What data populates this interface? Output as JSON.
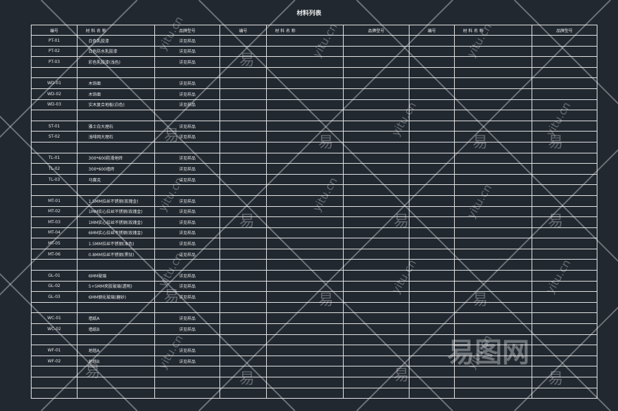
{
  "title": "材料列表",
  "headers": [
    "编号",
    "材 料 名 称",
    "品牌型号"
  ],
  "rows": [
    [
      "PT-01",
      "白色乳胶漆",
      "详见样品"
    ],
    [
      "PT-02",
      "白色防水乳胶漆",
      "详见样品"
    ],
    [
      "PT-03",
      "彩色乳胶漆(浅色)",
      "详见样品"
    ],
    [
      "",
      "",
      ""
    ],
    [
      "WD-01",
      "木饰面",
      "详见样品"
    ],
    [
      "WD-02",
      "木饰面",
      "详见样品"
    ],
    [
      "WD-03",
      "实木复合地板(白色)",
      "详见样品"
    ],
    [
      "",
      "",
      ""
    ],
    [
      "ST-01",
      "雅士白大理石",
      "详见样品"
    ],
    [
      "ST-02",
      "浅啡网大理石",
      "详见样品"
    ],
    [
      "",
      "",
      ""
    ],
    [
      "TL-01",
      "300*600防滑地砖",
      "详见样品"
    ],
    [
      "TL-02",
      "300*600墙砖",
      "详见样品"
    ],
    [
      "TL-03",
      "马赛克",
      "详见样品"
    ],
    [
      "",
      "",
      ""
    ],
    [
      "MT-01",
      "1.5MM拉丝不锈钢(玫瑰金)",
      "详见样品"
    ],
    [
      "MT-02",
      "1MM实心拉丝不锈钢(玫瑰金)",
      "详见样品"
    ],
    [
      "MT-03",
      "1MM实心拉丝不锈钢(玫瑰金)",
      "详见样品"
    ],
    [
      "MT-04",
      "6MM实心拉丝不锈钢(玫瑰金)",
      "详见样品"
    ],
    [
      "MT-05",
      "1.5MM拉丝不锈钢(本色)",
      "详见样品"
    ],
    [
      "MT-06",
      "0.8MM拉丝不锈钢(黑钛)",
      "详见样品"
    ],
    [
      "",
      "",
      ""
    ],
    [
      "GL-01",
      "6MM玻璃",
      "详见样品"
    ],
    [
      "GL-02",
      "5+5MM夹胶玻璃(透明)",
      "详见样品"
    ],
    [
      "GL-03",
      "6MM钢化玻璃(磨砂)",
      "详见样品"
    ],
    [
      "",
      "",
      ""
    ],
    [
      "WC-01",
      "墙纸A",
      "详见样品"
    ],
    [
      "WC-02",
      "墙纸B",
      "详见样品"
    ],
    [
      "",
      "",
      ""
    ],
    [
      "WF-01",
      "地毯A",
      "详见样品"
    ],
    [
      "WF-02",
      "地毯B",
      "详见样品"
    ],
    [
      "",
      "",
      ""
    ],
    [
      "",
      "",
      ""
    ],
    [
      "",
      "",
      ""
    ]
  ],
  "watermark": {
    "char": "易",
    "site": "yitu.cn",
    "logo": "易图网"
  },
  "colors": {
    "background": "#212830",
    "lines": "#e6e6e6"
  }
}
